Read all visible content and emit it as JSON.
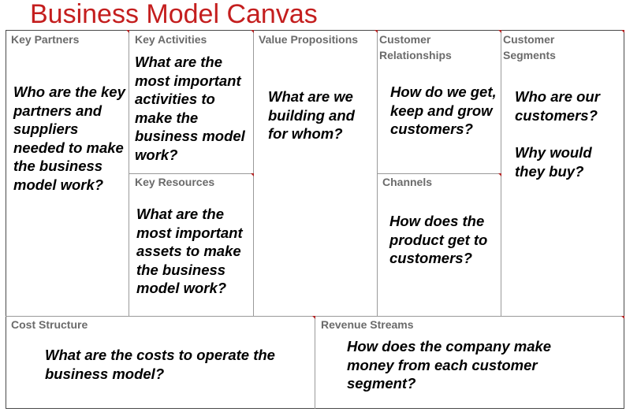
{
  "title": "Business Model Canvas",
  "colors": {
    "title": "#c41e1e",
    "label": "#6b6b6b",
    "question": "#000000",
    "divider": "#9a9a9a",
    "corner_marker": "#b22222"
  },
  "blocks": {
    "key_partners": {
      "label": "Key Partners",
      "question": "Who are the key partners and suppliers needed to make the business model work?"
    },
    "key_activities": {
      "label": "Key Activities",
      "question": "What are the most important activities to make the business model work?"
    },
    "key_resources": {
      "label": "Key Resources",
      "question": "What are the most important assets to make the business model work?"
    },
    "value_propositions": {
      "label": "Value Propositions",
      "question": "What are we building and for whom?"
    },
    "customer_relationships": {
      "label_line1": "Customer",
      "label_line2": "Relationships",
      "question": "How do we get, keep and grow customers?"
    },
    "channels": {
      "label": "Channels",
      "question": "How does the product get to customers?"
    },
    "customer_segments": {
      "label_line1": "Customer",
      "label_line2": "Segments",
      "question_line1": "Who are our customers?",
      "question_line2": "Why would they buy?"
    },
    "cost_structure": {
      "label": "Cost Structure",
      "question": "What are the costs to operate the business model?"
    },
    "revenue_streams": {
      "label": "Revenue Streams",
      "question": "How does the company make money from each customer segment?"
    }
  }
}
